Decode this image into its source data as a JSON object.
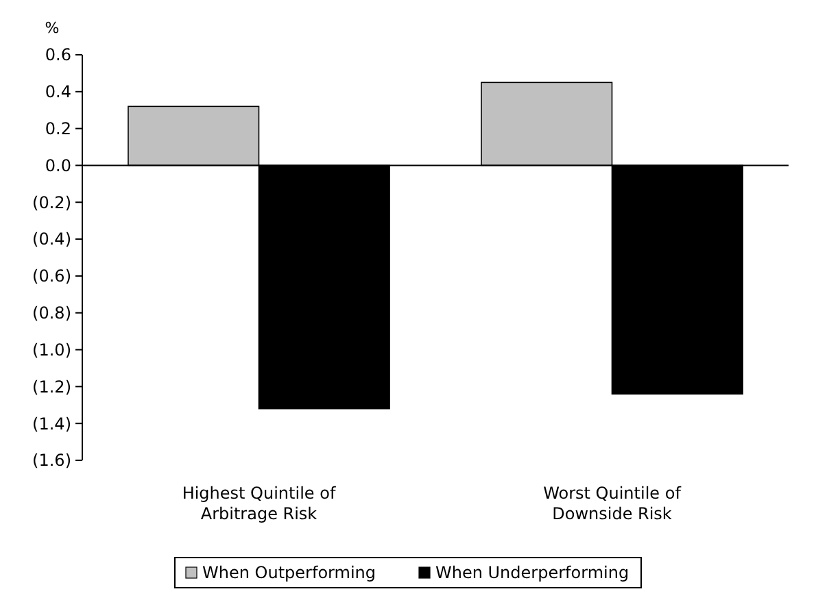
{
  "chart_data": {
    "type": "bar",
    "ylabel": "%",
    "categories": [
      "Highest Quintile of Arbitrage Risk",
      "Worst Quintile of Downside Risk"
    ],
    "series": [
      {
        "name": "When Outperforming",
        "color": "#c0c0c0",
        "values": [
          0.32,
          0.45
        ]
      },
      {
        "name": "When Underperforming",
        "color": "#000000",
        "values": [
          -1.32,
          -1.24
        ]
      }
    ],
    "ylim": [
      -1.6,
      0.6
    ],
    "yticks": [
      0.6,
      0.4,
      0.2,
      {
        "value": 0,
        "label": "0.0"
      },
      {
        "value": -0.2,
        "label": "(0.2)"
      },
      {
        "value": -0.4,
        "label": "(0.4)"
      },
      {
        "value": -0.6,
        "label": "(0.6)"
      },
      {
        "value": -0.8,
        "label": "(0.8)"
      },
      {
        "value": -1,
        "label": "(1.0)"
      },
      {
        "value": -1.2,
        "label": "(1.2)"
      },
      {
        "value": -1.4,
        "label": "(1.4)"
      },
      {
        "value": -1.6,
        "label": "(1.6)"
      }
    ],
    "legend": "bottom"
  }
}
